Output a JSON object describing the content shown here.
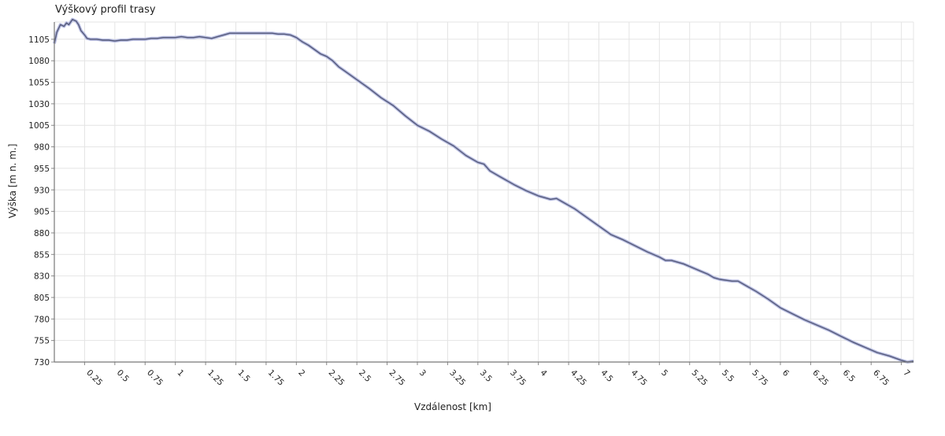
{
  "chart_data": {
    "type": "area",
    "title": "Výškový profil trasy",
    "xlabel": "Vzdálenost [km]",
    "ylabel": "Výška [m n. m.]",
    "xlim": [
      0,
      7.1
    ],
    "ylim": [
      730,
      1125
    ],
    "x_ticks": [
      "0.25",
      "0.5",
      "0.75",
      "1",
      "1.25",
      "1.5",
      "1.75",
      "2",
      "2.25",
      "2.5",
      "2.75",
      "3",
      "3.25",
      "3.5",
      "3.75",
      "4",
      "4.25",
      "4.5",
      "4.75",
      "5",
      "5.25",
      "5.5",
      "5.75",
      "6",
      "6.25",
      "6.5",
      "6.75",
      "7"
    ],
    "y_ticks": [
      "730",
      "755",
      "780",
      "805",
      "830",
      "855",
      "880",
      "905",
      "930",
      "955",
      "980",
      "1005",
      "1030",
      "1055",
      "1080",
      "1105"
    ],
    "grid": true,
    "legend": "none",
    "line_color": "#555a7a",
    "fill_color": "#b7bce0",
    "series": [
      {
        "x": [
          0.0,
          0.02,
          0.05,
          0.08,
          0.1,
          0.12,
          0.15,
          0.18,
          0.2,
          0.22,
          0.25,
          0.27,
          0.3,
          0.35,
          0.4,
          0.45,
          0.5,
          0.55,
          0.6,
          0.65,
          0.7,
          0.75,
          0.8,
          0.85,
          0.9,
          0.95,
          1.0,
          1.05,
          1.1,
          1.15,
          1.2,
          1.25,
          1.3,
          1.35,
          1.4,
          1.45,
          1.5,
          1.6,
          1.7,
          1.75,
          1.8,
          1.85,
          1.9,
          1.95,
          2.0,
          2.05,
          2.1,
          2.15,
          2.2,
          2.25,
          2.3,
          2.35,
          2.4,
          2.5,
          2.6,
          2.7,
          2.8,
          2.9,
          3.0,
          3.1,
          3.2,
          3.3,
          3.4,
          3.5,
          3.55,
          3.6,
          3.7,
          3.8,
          3.9,
          4.0,
          4.05,
          4.1,
          4.15,
          4.2,
          4.3,
          4.4,
          4.5,
          4.6,
          4.7,
          4.8,
          4.9,
          5.0,
          5.05,
          5.1,
          5.2,
          5.3,
          5.4,
          5.45,
          5.5,
          5.6,
          5.65,
          5.7,
          5.8,
          5.9,
          6.0,
          6.1,
          6.2,
          6.3,
          6.4,
          6.5,
          6.6,
          6.7,
          6.8,
          6.9,
          7.0,
          7.05,
          7.1
        ],
        "y": [
          1100,
          1113,
          1122,
          1120,
          1124,
          1122,
          1128,
          1126,
          1122,
          1115,
          1110,
          1106,
          1105,
          1105,
          1104,
          1104,
          1103,
          1104,
          1104,
          1105,
          1105,
          1105,
          1106,
          1106,
          1107,
          1107,
          1107,
          1108,
          1107,
          1107,
          1108,
          1107,
          1106,
          1108,
          1110,
          1112,
          1112,
          1112,
          1112,
          1112,
          1112,
          1111,
          1111,
          1110,
          1107,
          1102,
          1098,
          1093,
          1088,
          1085,
          1080,
          1073,
          1068,
          1058,
          1048,
          1037,
          1028,
          1016,
          1005,
          998,
          989,
          981,
          970,
          962,
          960,
          952,
          944,
          936,
          929,
          923,
          921,
          919,
          920,
          916,
          908,
          898,
          888,
          878,
          872,
          865,
          858,
          852,
          848,
          848,
          844,
          838,
          832,
          828,
          826,
          824,
          824,
          820,
          812,
          803,
          793,
          786,
          779,
          773,
          767,
          760,
          753,
          747,
          741,
          737,
          732,
          730,
          731
        ]
      }
    ]
  }
}
